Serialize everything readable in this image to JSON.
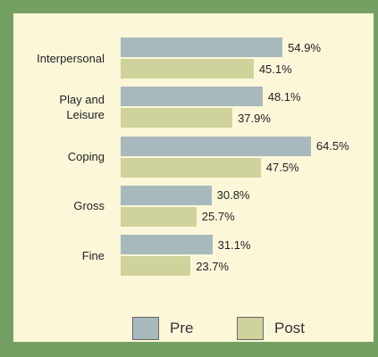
{
  "chart_data": {
    "type": "hbar",
    "categories": [
      "Interpersonal",
      "Play and\nLeisure",
      "Coping",
      "Gross",
      "Fine"
    ],
    "series": [
      {
        "name": "Pre",
        "color": "#a8b9bd",
        "values": [
          54.9,
          48.1,
          64.5,
          30.8,
          31.1
        ],
        "value_labels": [
          "54.9%",
          "48.1%",
          "64.5%",
          "30.8%",
          "31.1%"
        ]
      },
      {
        "name": "Post",
        "color": "#cfd39b",
        "values": [
          45.1,
          37.9,
          47.5,
          25.7,
          23.7
        ],
        "value_labels": [
          "45.1%",
          "37.9%",
          "47.5%",
          "25.7%",
          "23.7%"
        ]
      }
    ],
    "xlim": [
      0,
      70
    ],
    "legend": "bottom"
  }
}
